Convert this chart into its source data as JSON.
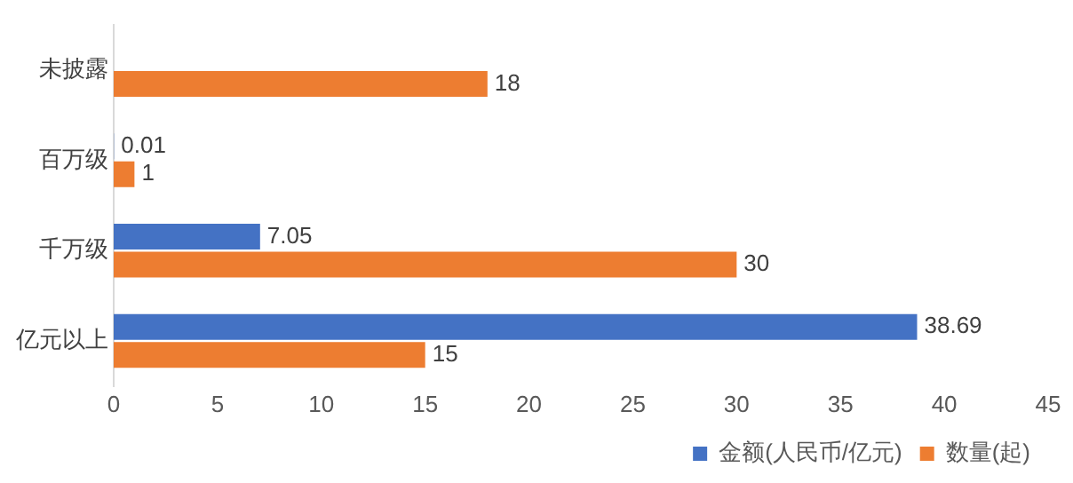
{
  "chart_data": {
    "type": "bar",
    "orientation": "horizontal",
    "categories": [
      "未披露",
      "百万级",
      "千万级",
      "亿元以上"
    ],
    "series": [
      {
        "name": "金额(人民币/亿元)",
        "color": "#4472c4",
        "values": [
          null,
          0.01,
          7.05,
          38.69
        ]
      },
      {
        "name": "数量(起)",
        "color": "#ed7d31",
        "values": [
          18,
          1,
          30,
          15
        ]
      }
    ],
    "xlim": [
      0,
      45
    ],
    "xticks": [
      0,
      5,
      10,
      15,
      20,
      25,
      30,
      35,
      40,
      45
    ],
    "grid": false,
    "legend": "bottom",
    "data_labels": true
  }
}
